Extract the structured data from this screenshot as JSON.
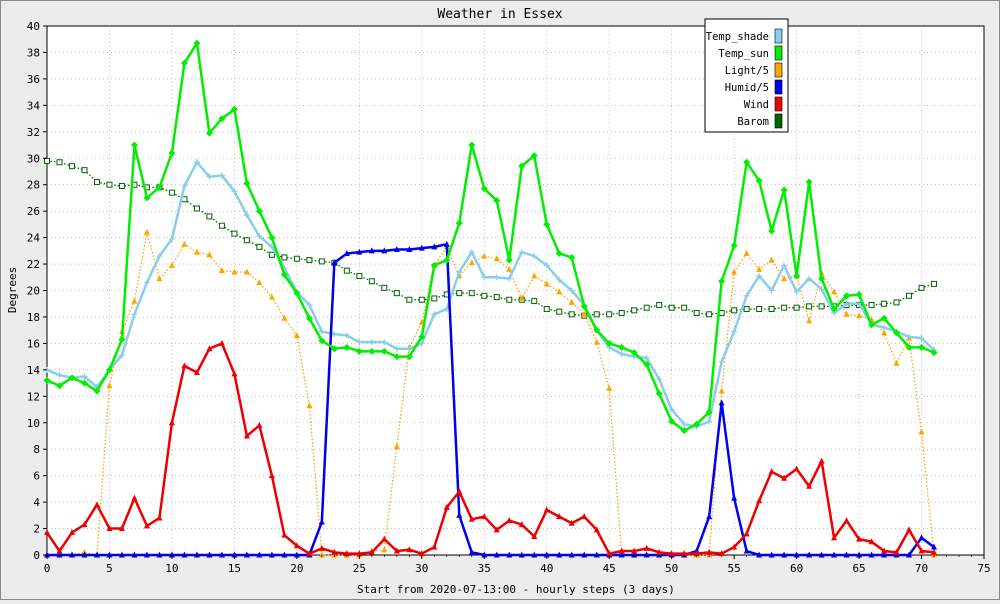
{
  "chart_data": {
    "type": "line",
    "title": "Weather in Essex",
    "xlabel": "Start from 2020-07-13:00 - hourly steps (3 days)",
    "ylabel": "Degrees",
    "xlim": [
      0,
      75
    ],
    "ylim": [
      0,
      40
    ],
    "xticks": [
      0,
      5,
      10,
      15,
      20,
      25,
      30,
      35,
      40,
      45,
      50,
      55,
      60,
      65,
      70,
      75
    ],
    "yticks": [
      0,
      2,
      4,
      6,
      8,
      10,
      12,
      14,
      16,
      18,
      20,
      22,
      24,
      26,
      28,
      30,
      32,
      34,
      36,
      38,
      40
    ],
    "grid": true,
    "legend_position": "top-right",
    "series": [
      {
        "name": "Temp_shade",
        "color": "#87ceeb",
        "marker": "cross",
        "line": "solid",
        "values": [
          14,
          13.6,
          13.4,
          13.5,
          12.7,
          14,
          15.1,
          18.2,
          20.6,
          22.6,
          23.9,
          27.9,
          29.7,
          28.6,
          28.7,
          27.5,
          25.7,
          24.1,
          23.3,
          21.7,
          19.9,
          18.9,
          16.9,
          16.7,
          16.6,
          16.1,
          16.1,
          16.1,
          15.6,
          15.6,
          16,
          18.2,
          18.6,
          21.4,
          22.9,
          21,
          21,
          20.9,
          22.9,
          22.6,
          21.9,
          20.8,
          20,
          18.9,
          17,
          15.7,
          15.2,
          15,
          14.9,
          13.3,
          11,
          9.9,
          9.7,
          10.1,
          14.6,
          16.9,
          19.6,
          21.1,
          20,
          21.9,
          19.9,
          20.9,
          20.1,
          18.3,
          19,
          19,
          17.4,
          17.2,
          16.9,
          16.5,
          16.4,
          15.5
        ]
      },
      {
        "name": "Temp_sun",
        "color": "#00ee00",
        "marker": "diamond",
        "line": "solid",
        "values": [
          13.2,
          12.8,
          13.4,
          13,
          12.4,
          14,
          16.3,
          31,
          27,
          27.8,
          30.4,
          37.2,
          38.7,
          31.9,
          33,
          33.7,
          28.1,
          26,
          24,
          21.2,
          19.8,
          17.9,
          16.2,
          15.6,
          15.7,
          15.4,
          15.4,
          15.4,
          15,
          15,
          16.5,
          21.9,
          22.3,
          25.1,
          31,
          27.7,
          26.8,
          22.3,
          29.4,
          30.2,
          25,
          22.8,
          22.5,
          18.8,
          17,
          16,
          15.7,
          15.3,
          14.4,
          12.2,
          10.1,
          9.4,
          9.9,
          10.8,
          20.7,
          23.4,
          29.7,
          28.3,
          24.5,
          27.6,
          21.1,
          28.2,
          20.9,
          18.6,
          19.6,
          19.7,
          17.4,
          17.9,
          16.8,
          15.7,
          15.7,
          15.3
        ]
      },
      {
        "name": "Light/5",
        "color": "#ffa500",
        "marker": "triangle",
        "line": "dotted",
        "values": [
          0,
          0,
          0,
          0.2,
          0,
          12.8,
          16.9,
          19.2,
          24.4,
          20.9,
          21.9,
          23.5,
          22.9,
          22.7,
          21.5,
          21.4,
          21.4,
          20.6,
          19.5,
          17.9,
          16.6,
          11.3,
          0,
          0,
          0,
          0,
          0.3,
          0.4,
          8.2,
          15.7,
          17.6,
          21.9,
          23.3,
          21.1,
          22.1,
          22.6,
          22.4,
          21.6,
          19.4,
          21.1,
          20.5,
          19.9,
          19.1,
          18.2,
          16.1,
          12.6,
          0,
          0,
          0,
          0,
          0,
          0,
          0,
          0,
          12.4,
          21.4,
          22.8,
          21.6,
          22.3,
          20.9,
          21.1,
          17.7,
          21.3,
          19.9,
          18.2,
          18.1,
          17.8,
          16.8,
          14.5,
          16.4,
          9.3,
          0
        ]
      },
      {
        "name": "Humid/5",
        "color": "#0000ee",
        "marker": "triangle",
        "line": "solid",
        "values": [
          0,
          0,
          0,
          0,
          0,
          0,
          0,
          0,
          0,
          0,
          0,
          0,
          0,
          0,
          0,
          0,
          0,
          0,
          0,
          0,
          0,
          0,
          2.5,
          22.1,
          22.8,
          22.9,
          23,
          23,
          23.1,
          23.1,
          23.2,
          23.3,
          23.5,
          3,
          0.2,
          0,
          0,
          0,
          0,
          0,
          0,
          0,
          0,
          0,
          0,
          0,
          0,
          0,
          0,
          0,
          0,
          0,
          0.3,
          2.9,
          11.5,
          4.3,
          0.3,
          0,
          0,
          0,
          0,
          0,
          0,
          0,
          0,
          0,
          0,
          0,
          0,
          0,
          1.3,
          0.6
        ]
      },
      {
        "name": "Wind",
        "color": "#ee0000",
        "marker": "triangle",
        "line": "solid",
        "values": [
          1.7,
          0.3,
          1.7,
          2.3,
          3.8,
          2,
          2,
          4.3,
          2.2,
          2.8,
          10,
          14.3,
          13.8,
          15.6,
          16,
          13.7,
          9,
          9.8,
          6,
          1.5,
          0.7,
          0.1,
          0.5,
          0.2,
          0.1,
          0.1,
          0.2,
          1.2,
          0.3,
          0.4,
          0.1,
          0.6,
          3.6,
          4.8,
          2.7,
          2.9,
          1.9,
          2.6,
          2.3,
          1.4,
          3.4,
          2.9,
          2.4,
          2.9,
          1.9,
          0.1,
          0.3,
          0.3,
          0.5,
          0.2,
          0.1,
          0.1,
          0.1,
          0.2,
          0.1,
          0.6,
          1.6,
          4.1,
          6.3,
          5.8,
          6.5,
          5.2,
          7.1,
          1.3,
          2.6,
          1.2,
          1,
          0.3,
          0.2,
          1.9,
          0.3,
          0.2
        ]
      },
      {
        "name": "Barom",
        "color": "#006400",
        "marker": "square",
        "line": "dotted",
        "values": [
          29.8,
          29.7,
          29.4,
          29.1,
          28.2,
          28,
          27.9,
          28,
          27.8,
          27.8,
          27.4,
          26.9,
          26.2,
          25.6,
          24.9,
          24.3,
          23.8,
          23.3,
          22.7,
          22.5,
          22.4,
          22.3,
          22.2,
          22.1,
          21.5,
          21.1,
          20.7,
          20.2,
          19.8,
          19.3,
          19.3,
          19.4,
          19.7,
          19.8,
          19.8,
          19.6,
          19.5,
          19.3,
          19.3,
          19.2,
          18.6,
          18.4,
          18.2,
          18.1,
          18.2,
          18.2,
          18.3,
          18.5,
          18.7,
          18.9,
          18.7,
          18.7,
          18.3,
          18.2,
          18.3,
          18.5,
          18.6,
          18.6,
          18.6,
          18.7,
          18.7,
          18.8,
          18.8,
          18.8,
          18.9,
          18.9,
          18.9,
          19,
          19.1,
          19.6,
          20.2,
          20.5
        ]
      }
    ]
  }
}
